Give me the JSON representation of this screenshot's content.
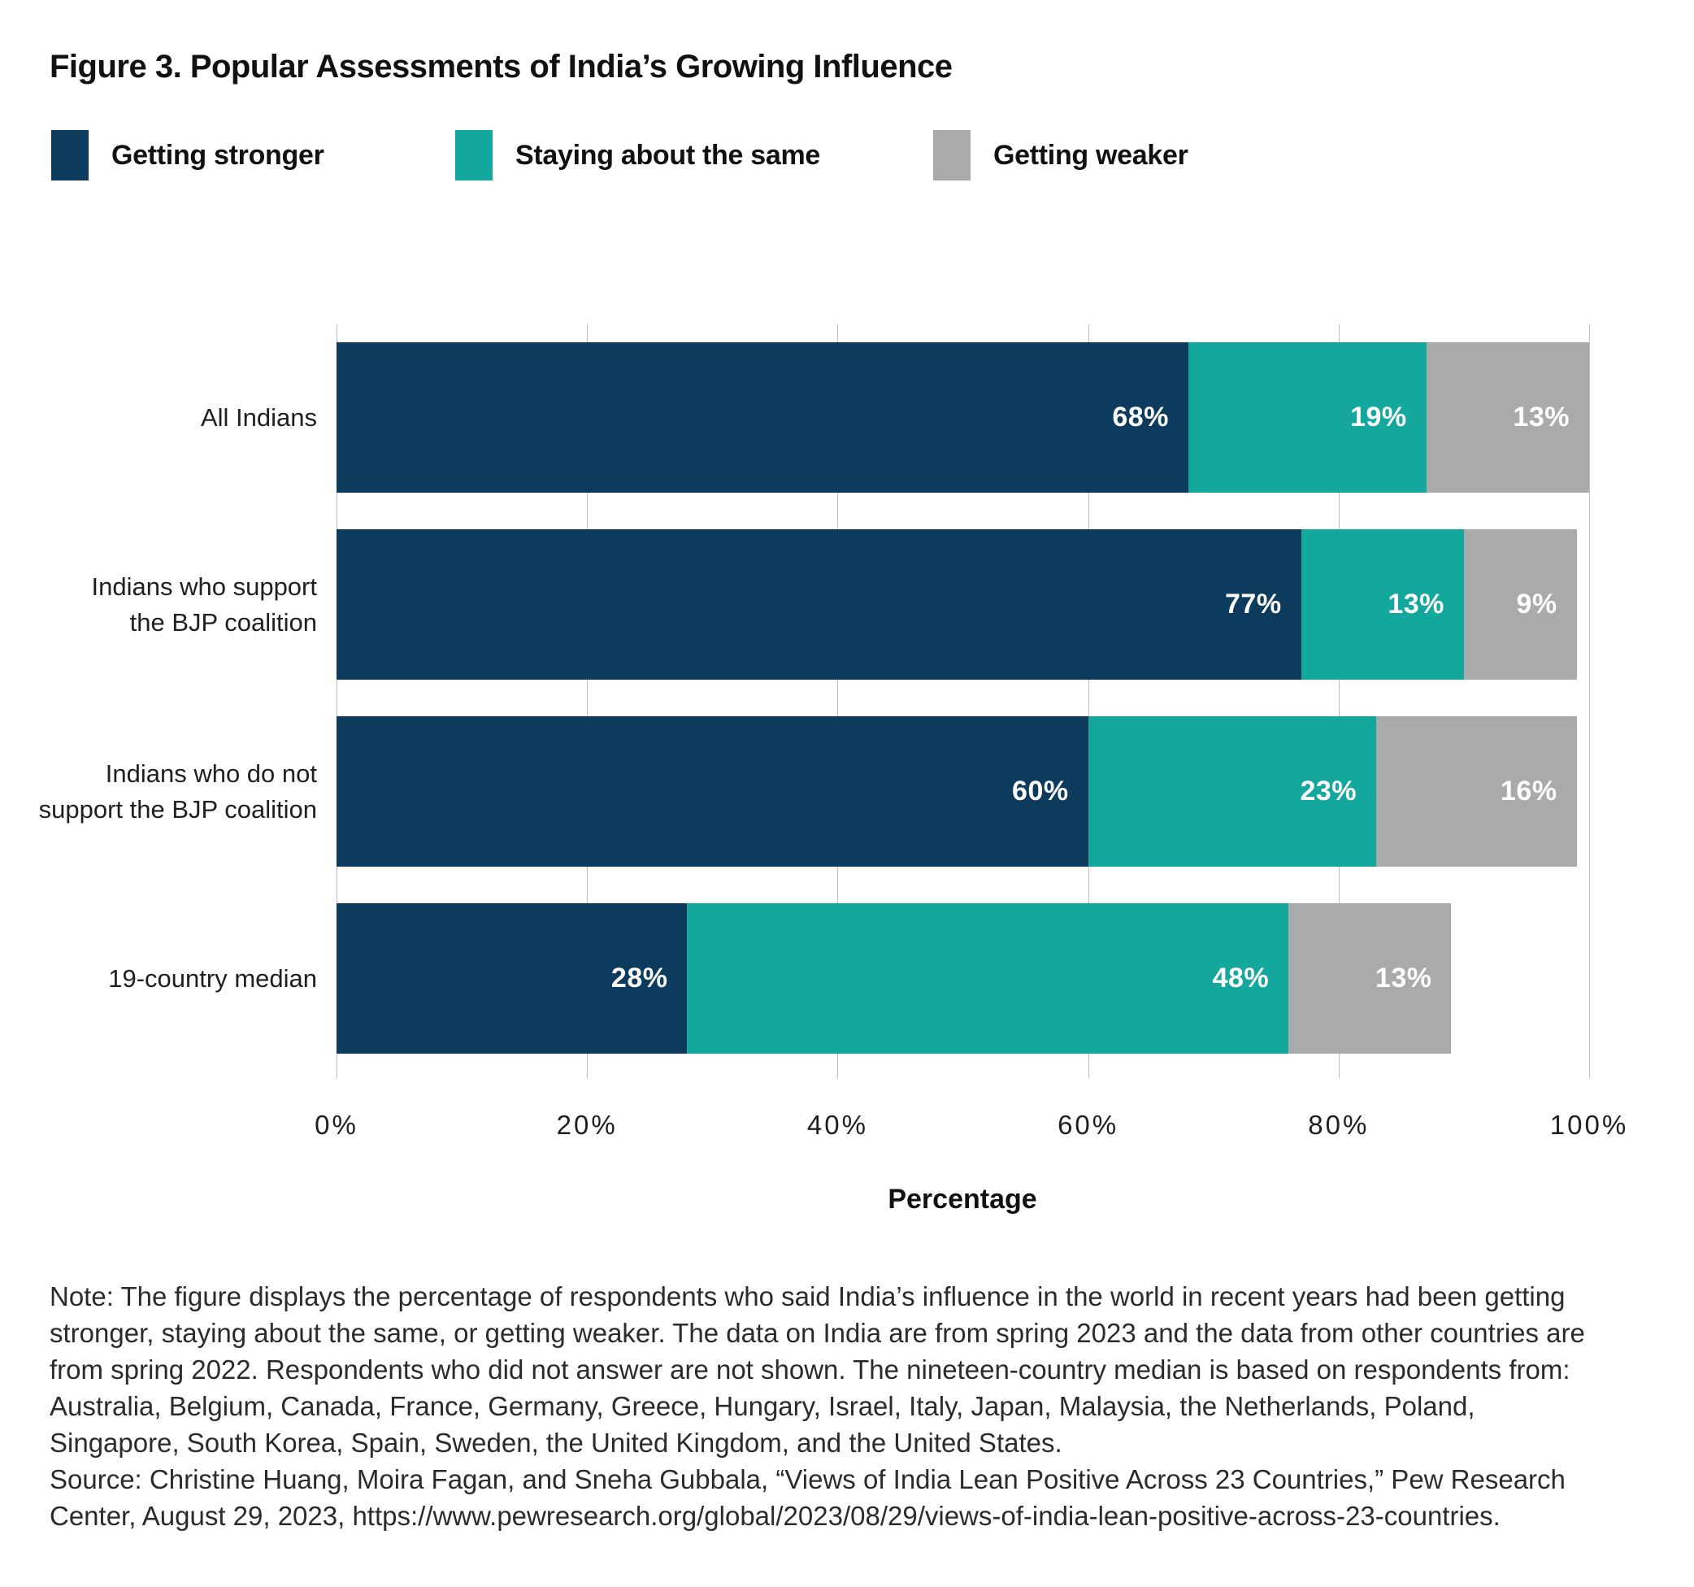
{
  "title": "Figure 3. Popular Assessments of India’s Growing Influence",
  "legend": [
    {
      "label": "Getting stronger",
      "color": "#0c3b5e"
    },
    {
      "label": "Staying about the same",
      "color": "#14a79e"
    },
    {
      "label": "Getting weaker",
      "color": "#a8aaac"
    }
  ],
  "chart_data": {
    "type": "bar",
    "orientation": "horizontal",
    "stacked": true,
    "title": "Figure 3. Popular Assessments of India’s Growing Influence",
    "categories": [
      "All Indians",
      "Indians who support the BJP coalition",
      "Indians who do not support the BJP coalition",
      "19-country median"
    ],
    "categories_display": [
      [
        "All Indians"
      ],
      [
        "Indians who support",
        "the BJP coalition"
      ],
      [
        "Indians who do not",
        "support the BJP coalition"
      ],
      [
        "19-country median"
      ]
    ],
    "series": [
      {
        "name": "Getting stronger",
        "color": "#0c3b5e",
        "values": [
          68,
          77,
          60,
          28
        ]
      },
      {
        "name": "Staying about the same",
        "color": "#14a79e",
        "values": [
          19,
          13,
          23,
          48
        ]
      },
      {
        "name": "Getting weaker",
        "color": "#a8aaac",
        "values": [
          13,
          9,
          16,
          13
        ]
      }
    ],
    "value_labels": [
      [
        "68%",
        "19%",
        "13%"
      ],
      [
        "77%",
        "13%",
        "9%"
      ],
      [
        "60%",
        "23%",
        "16%"
      ],
      [
        "28%",
        "48%",
        "13%"
      ]
    ],
    "xlabel": "Percentage",
    "xlim": [
      0,
      100
    ],
    "x_ticks": [
      "0%",
      "20%",
      "40%",
      "60%",
      "80%",
      "100%"
    ],
    "grid": true,
    "gridline_color": "#bdbebf",
    "legend_position": "top"
  },
  "note": {
    "note_text": "Note: The figure displays the percentage of respondents who said India’s influence in the world in recent years had been getting stronger, staying about the same, or getting weaker. The data on India are from spring 2023 and the data from other countries are from spring 2022. Respondents who did not answer are not shown. The nineteen-country median is based on respondents from: Australia, Belgium, Canada, France, Germany, Greece, Hungary, Israel, Italy, Japan, Malaysia, the Netherlands, Poland, Singapore, South Korea, Spain, Sweden, the United Kingdom, and the United States.",
    "source_text": "Source: Christine Huang, Moira Fagan, and Sneha Gubbala, “Views of India Lean Positive Across 23 Countries,” Pew Research Center, August 29, 2023, https://www.pewresearch.org/global/2023/08/29/views-of-india-lean-positive-across-23-countries."
  }
}
